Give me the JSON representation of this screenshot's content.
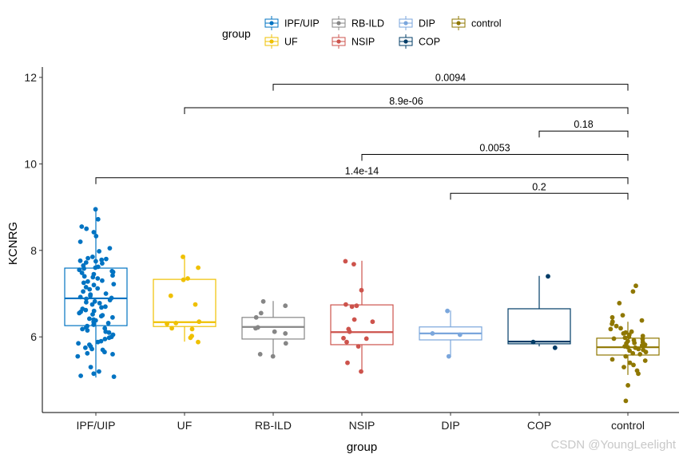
{
  "chart_data": {
    "type": "box",
    "title": "",
    "xlabel": "group",
    "ylabel": "KCNRG",
    "ylim": [
      4.3,
      12.2
    ],
    "yticks": [
      6,
      8,
      10,
      12
    ],
    "categories": [
      "IPF/UIP",
      "UF",
      "RB-ILD",
      "NSIP",
      "DIP",
      "COP",
      "control"
    ],
    "colors": {
      "IPF/UIP": "#0073C2",
      "UF": "#EFC000",
      "RB-ILD": "#868686",
      "NSIP": "#CD534C",
      "DIP": "#7AA6DC",
      "COP": "#003C67",
      "control": "#8F7700"
    },
    "boxes": [
      {
        "group": "IPF/UIP",
        "whisker_low": 5.06,
        "q1": 6.26,
        "median": 6.89,
        "q3": 7.59,
        "whisker_high": 8.96
      },
      {
        "group": "UF",
        "whisker_low": 5.89,
        "q1": 6.24,
        "median": 6.34,
        "q3": 7.33,
        "whisker_high": 7.89
      },
      {
        "group": "RB-ILD",
        "whisker_low": 5.54,
        "q1": 5.95,
        "median": 6.23,
        "q3": 6.45,
        "whisker_high": 6.83
      },
      {
        "group": "NSIP",
        "whisker_low": 5.21,
        "q1": 5.82,
        "median": 6.11,
        "q3": 6.74,
        "whisker_high": 7.76
      },
      {
        "group": "DIP",
        "whisker_low": 5.54,
        "q1": 5.93,
        "median": 6.08,
        "q3": 6.23,
        "whisker_high": 6.61
      },
      {
        "group": "COP",
        "whisker_low": 5.78,
        "q1": 5.84,
        "median": 5.89,
        "q3": 6.65,
        "whisker_high": 7.41
      },
      {
        "group": "control",
        "whisker_low": 5.12,
        "q1": 5.58,
        "median": 5.76,
        "q3": 5.97,
        "whisker_high": 6.35
      }
    ],
    "points": {
      "IPF/UIP": [
        8.95,
        8.72,
        8.55,
        8.5,
        8.42,
        8.33,
        8.2,
        8.05,
        7.98,
        7.85,
        7.82,
        7.8,
        7.78,
        7.76,
        7.75,
        7.72,
        7.7,
        7.65,
        7.62,
        7.6,
        7.58,
        7.55,
        7.52,
        7.5,
        7.48,
        7.45,
        7.42,
        7.4,
        7.38,
        7.35,
        7.3,
        7.28,
        7.25,
        7.22,
        7.2,
        7.15,
        7.12,
        7.1,
        7.05,
        7.0,
        6.98,
        6.95,
        6.92,
        6.9,
        6.88,
        6.85,
        6.82,
        6.8,
        6.78,
        6.75,
        6.7,
        6.68,
        6.65,
        6.62,
        6.6,
        6.58,
        6.55,
        6.52,
        6.5,
        6.48,
        6.45,
        6.42,
        6.4,
        6.38,
        6.35,
        6.32,
        6.3,
        6.28,
        6.25,
        6.22,
        6.2,
        6.18,
        6.15,
        6.12,
        6.1,
        6.05,
        6.0,
        5.98,
        5.95,
        5.9,
        5.88,
        5.85,
        5.82,
        5.78,
        5.75,
        5.72,
        5.7,
        5.65,
        5.62,
        5.6,
        5.55,
        5.3,
        5.2,
        5.15,
        5.1,
        5.08
      ],
      "UF": [
        7.85,
        7.6,
        7.35,
        7.32,
        6.95,
        6.75,
        6.35,
        6.32,
        6.3,
        6.2,
        6.18,
        6.02,
        5.98,
        5.88
      ],
      "RB-ILD": [
        6.82,
        6.72,
        6.55,
        6.45,
        6.22,
        6.2,
        6.12,
        6.08,
        5.85,
        5.6,
        5.55
      ],
      "NSIP": [
        7.75,
        7.68,
        7.08,
        6.75,
        6.72,
        6.7,
        6.4,
        6.35,
        6.18,
        6.12,
        5.97,
        5.96,
        5.88,
        5.78,
        5.4,
        5.2
      ],
      "DIP": [
        6.6,
        6.08,
        6.05,
        5.55
      ],
      "COP": [
        7.4,
        5.88,
        5.75
      ],
      "control": [
        7.18,
        7.05,
        6.78,
        6.5,
        6.45,
        6.38,
        6.35,
        6.3,
        6.25,
        6.2,
        6.18,
        6.12,
        6.1,
        6.08,
        6.05,
        6.02,
        6.0,
        5.98,
        5.96,
        5.95,
        5.92,
        5.9,
        5.88,
        5.86,
        5.85,
        5.82,
        5.8,
        5.78,
        5.76,
        5.75,
        5.72,
        5.7,
        5.68,
        5.65,
        5.62,
        5.6,
        5.55,
        5.48,
        5.45,
        5.4,
        5.35,
        5.3,
        5.22,
        5.15,
        4.88,
        4.52
      ]
    },
    "comparisons": [
      {
        "group1": "DIP",
        "group2": "control",
        "label": "0.2",
        "y": 9.32
      },
      {
        "group1": "IPF/UIP",
        "group2": "control",
        "label": "1.4e-14",
        "y": 9.68
      },
      {
        "group1": "NSIP",
        "group2": "control",
        "label": "0.0053",
        "y": 10.22
      },
      {
        "group1": "COP",
        "group2": "control",
        "label": "0.18",
        "y": 10.76
      },
      {
        "group1": "UF",
        "group2": "control",
        "label": "8.9e-06",
        "y": 11.3
      },
      {
        "group1": "RB-ILD",
        "group2": "control",
        "label": "0.0094",
        "y": 11.84
      }
    ],
    "legend": {
      "title": "group",
      "position": "top",
      "entries": [
        "IPF/UIP",
        "UF",
        "RB-ILD",
        "NSIP",
        "DIP",
        "COP",
        "control"
      ]
    }
  },
  "watermark": "CSDN @YoungLeelight"
}
